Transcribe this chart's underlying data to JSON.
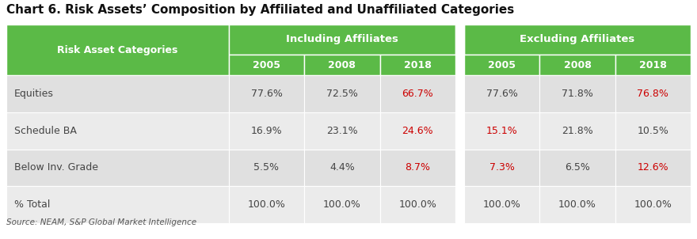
{
  "title": "Chart 6. Risk Assets’ Composition by Affiliated and Unaffiliated Categories",
  "source": "Source: NEAM, S&P Global Market Intelligence",
  "green_color": "#5bba47",
  "light_gray1": "#e0e0e0",
  "light_gray2": "#ebebeb",
  "white": "#ffffff",
  "red_color": "#cc0000",
  "black_color": "#444444",
  "col1_header": "Risk Asset Categories",
  "group1_header": "Including Affiliates",
  "group2_header": "Excluding Affiliates",
  "year_headers_inc": [
    "2005",
    "2008",
    "2018"
  ],
  "year_headers_exc": [
    "2005",
    "2008",
    "2018"
  ],
  "rows": [
    {
      "label": "Equities",
      "including": [
        "77.6%",
        "72.5%",
        "66.7%"
      ],
      "excluding": [
        "77.6%",
        "71.8%",
        "76.8%"
      ],
      "incl_red": [
        false,
        false,
        true
      ],
      "excl_red": [
        false,
        false,
        true
      ]
    },
    {
      "label": "Schedule BA",
      "including": [
        "16.9%",
        "23.1%",
        "24.6%"
      ],
      "excluding": [
        "15.1%",
        "21.8%",
        "10.5%"
      ],
      "incl_red": [
        false,
        false,
        true
      ],
      "excl_red": [
        true,
        false,
        false
      ]
    },
    {
      "label": "Below Inv. Grade",
      "including": [
        "5.5%",
        "4.4%",
        "8.7%"
      ],
      "excluding": [
        "7.3%",
        "6.5%",
        "12.6%"
      ],
      "incl_red": [
        false,
        false,
        true
      ],
      "excl_red": [
        true,
        false,
        true
      ]
    },
    {
      "label": "% Total",
      "including": [
        "100.0%",
        "100.0%",
        "100.0%"
      ],
      "excluding": [
        "100.0%",
        "100.0%",
        "100.0%"
      ],
      "incl_red": [
        false,
        false,
        false
      ],
      "excl_red": [
        false,
        false,
        false
      ]
    }
  ],
  "figsize": [
    8.8,
    3.02
  ],
  "dpi": 100
}
